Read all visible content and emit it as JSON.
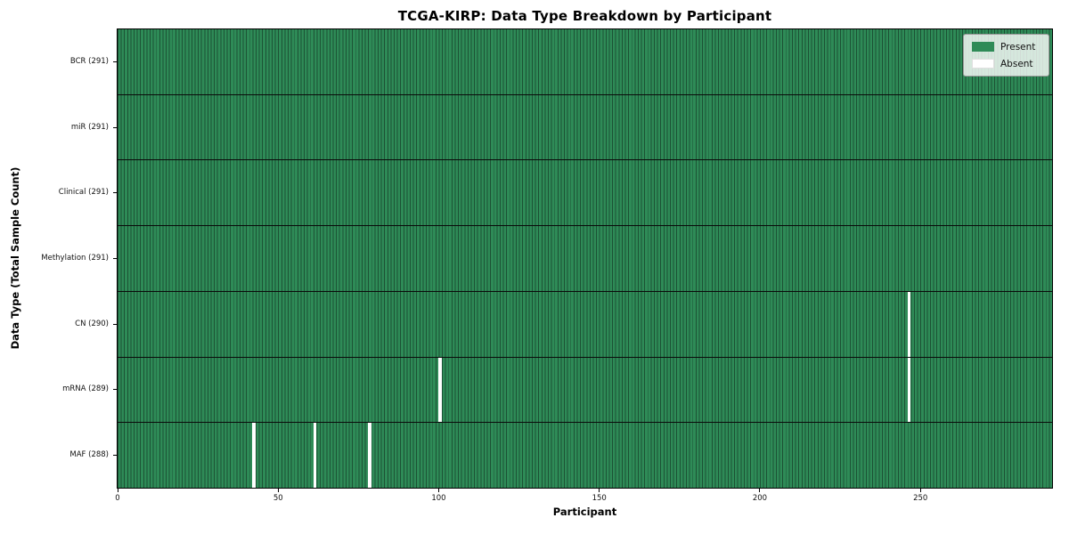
{
  "chart_data": {
    "type": "heatmap",
    "title": "TCGA-KIRP: Data Type Breakdown by Participant",
    "xlabel": "Participant",
    "ylabel": "Data Type (Total Sample Count)",
    "x_ticks": [
      0,
      50,
      100,
      150,
      200,
      250
    ],
    "x_range": [
      0,
      291
    ],
    "n_participants": 291,
    "rows": [
      {
        "name": "BCR",
        "label": "BCR (291)",
        "total_samples": 291,
        "absent_participants": []
      },
      {
        "name": "miR",
        "label": "miR (291)",
        "total_samples": 291,
        "absent_participants": []
      },
      {
        "name": "Clinical",
        "label": "Clinical (291)",
        "total_samples": 291,
        "absent_participants": []
      },
      {
        "name": "Methylation",
        "label": "Methylation (291)",
        "total_samples": 291,
        "absent_participants": []
      },
      {
        "name": "CN",
        "label": "CN (290)",
        "total_samples": 290,
        "absent_participants": [
          246
        ]
      },
      {
        "name": "mRNA",
        "label": "mRNA (289)",
        "total_samples": 289,
        "absent_participants": [
          100,
          246
        ]
      },
      {
        "name": "MAF",
        "label": "MAF (288)",
        "total_samples": 288,
        "absent_participants": [
          42,
          61,
          78
        ]
      }
    ],
    "legend": [
      {
        "label": "Present",
        "color": "#2e8b57"
      },
      {
        "label": "Absent",
        "color": "#ffffff"
      }
    ],
    "colors": {
      "present": "#2e8b57",
      "cell_edge": "#1c5134",
      "absent": "#ffffff",
      "row_divider": "#000000",
      "frame": "#000000"
    },
    "legend_position": "upper right",
    "grid": "row-dividers"
  }
}
